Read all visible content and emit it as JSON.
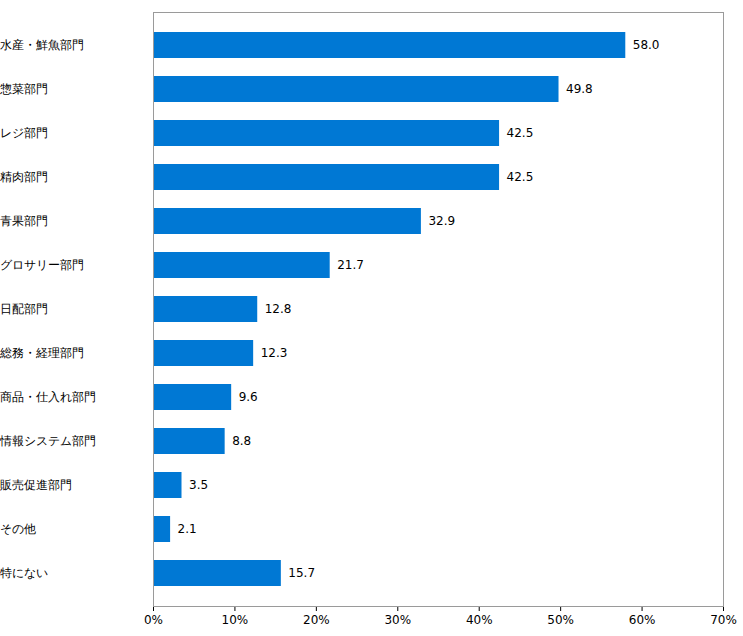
{
  "chart_data": {
    "type": "bar",
    "orientation": "horizontal",
    "categories": [
      "水産・鮮魚部門",
      "惣菜部門",
      "レジ部門",
      "精肉部門",
      "青果部門",
      "グロサリー部門",
      "日配部門",
      "総務・経理部門",
      "商品・仕入れ部門",
      "情報システム部門",
      "販売促進部門",
      "その他",
      "特にない"
    ],
    "values": [
      58.0,
      49.8,
      42.5,
      42.5,
      32.9,
      21.7,
      12.8,
      12.3,
      9.6,
      8.8,
      3.5,
      2.1,
      15.7
    ],
    "value_labels": [
      "58.0",
      "49.8",
      "42.5",
      "42.5",
      "32.9",
      "21.7",
      "12.8",
      "12.3",
      "9.6",
      "8.8",
      "3.5",
      "2.1",
      "15.7"
    ],
    "color": "#0078d4",
    "xlim": [
      0,
      70
    ],
    "xticks": [
      {
        "value": 0,
        "label": "0%"
      },
      {
        "value": 10,
        "label": "10%"
      },
      {
        "value": 20,
        "label": "20%"
      },
      {
        "value": 30,
        "label": "30%"
      },
      {
        "value": 40,
        "label": "40%"
      },
      {
        "value": 50,
        "label": "50%"
      },
      {
        "value": 60,
        "label": "60%"
      },
      {
        "value": 70,
        "label": "70%"
      }
    ],
    "grid": false,
    "data_labels": true
  }
}
